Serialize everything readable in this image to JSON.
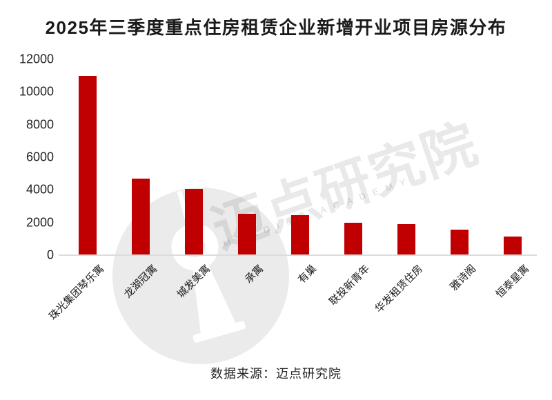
{
  "title": "2025年三季度重点住房租赁企业新增开业项目房源分布",
  "source_note": "数据来源：迈点研究院",
  "watermark": {
    "cn_text": "迈点研究院",
    "en_text": "MEADIN ACADEMY"
  },
  "colors": {
    "bar": "#c00000",
    "title_text": "#1a1a1a",
    "axis_text": "#222222",
    "baseline": "#dcdcdc",
    "watermark_gray": "#ebebeb"
  },
  "chart_data": {
    "type": "bar",
    "title": "2025年三季度重点住房租赁企业新增开业项目房源分布",
    "categories": [
      "珠光集团琴乐寓",
      "龙湖冠寓",
      "城发美寓",
      "承寓",
      "有巢",
      "联投新青年",
      "华发租赁住房",
      "雅诗阁",
      "恒泰星寓"
    ],
    "values": [
      11000,
      4700,
      4050,
      2550,
      2450,
      2000,
      1900,
      1550,
      1150
    ],
    "xlabel": "",
    "ylabel": "",
    "ylim": [
      0,
      12000
    ],
    "yticks": [
      0,
      2000,
      4000,
      6000,
      8000,
      10000,
      12000
    ],
    "grid": false,
    "legend": false,
    "bar_color": "#c00000",
    "source": "数据来源：迈点研究院"
  }
}
